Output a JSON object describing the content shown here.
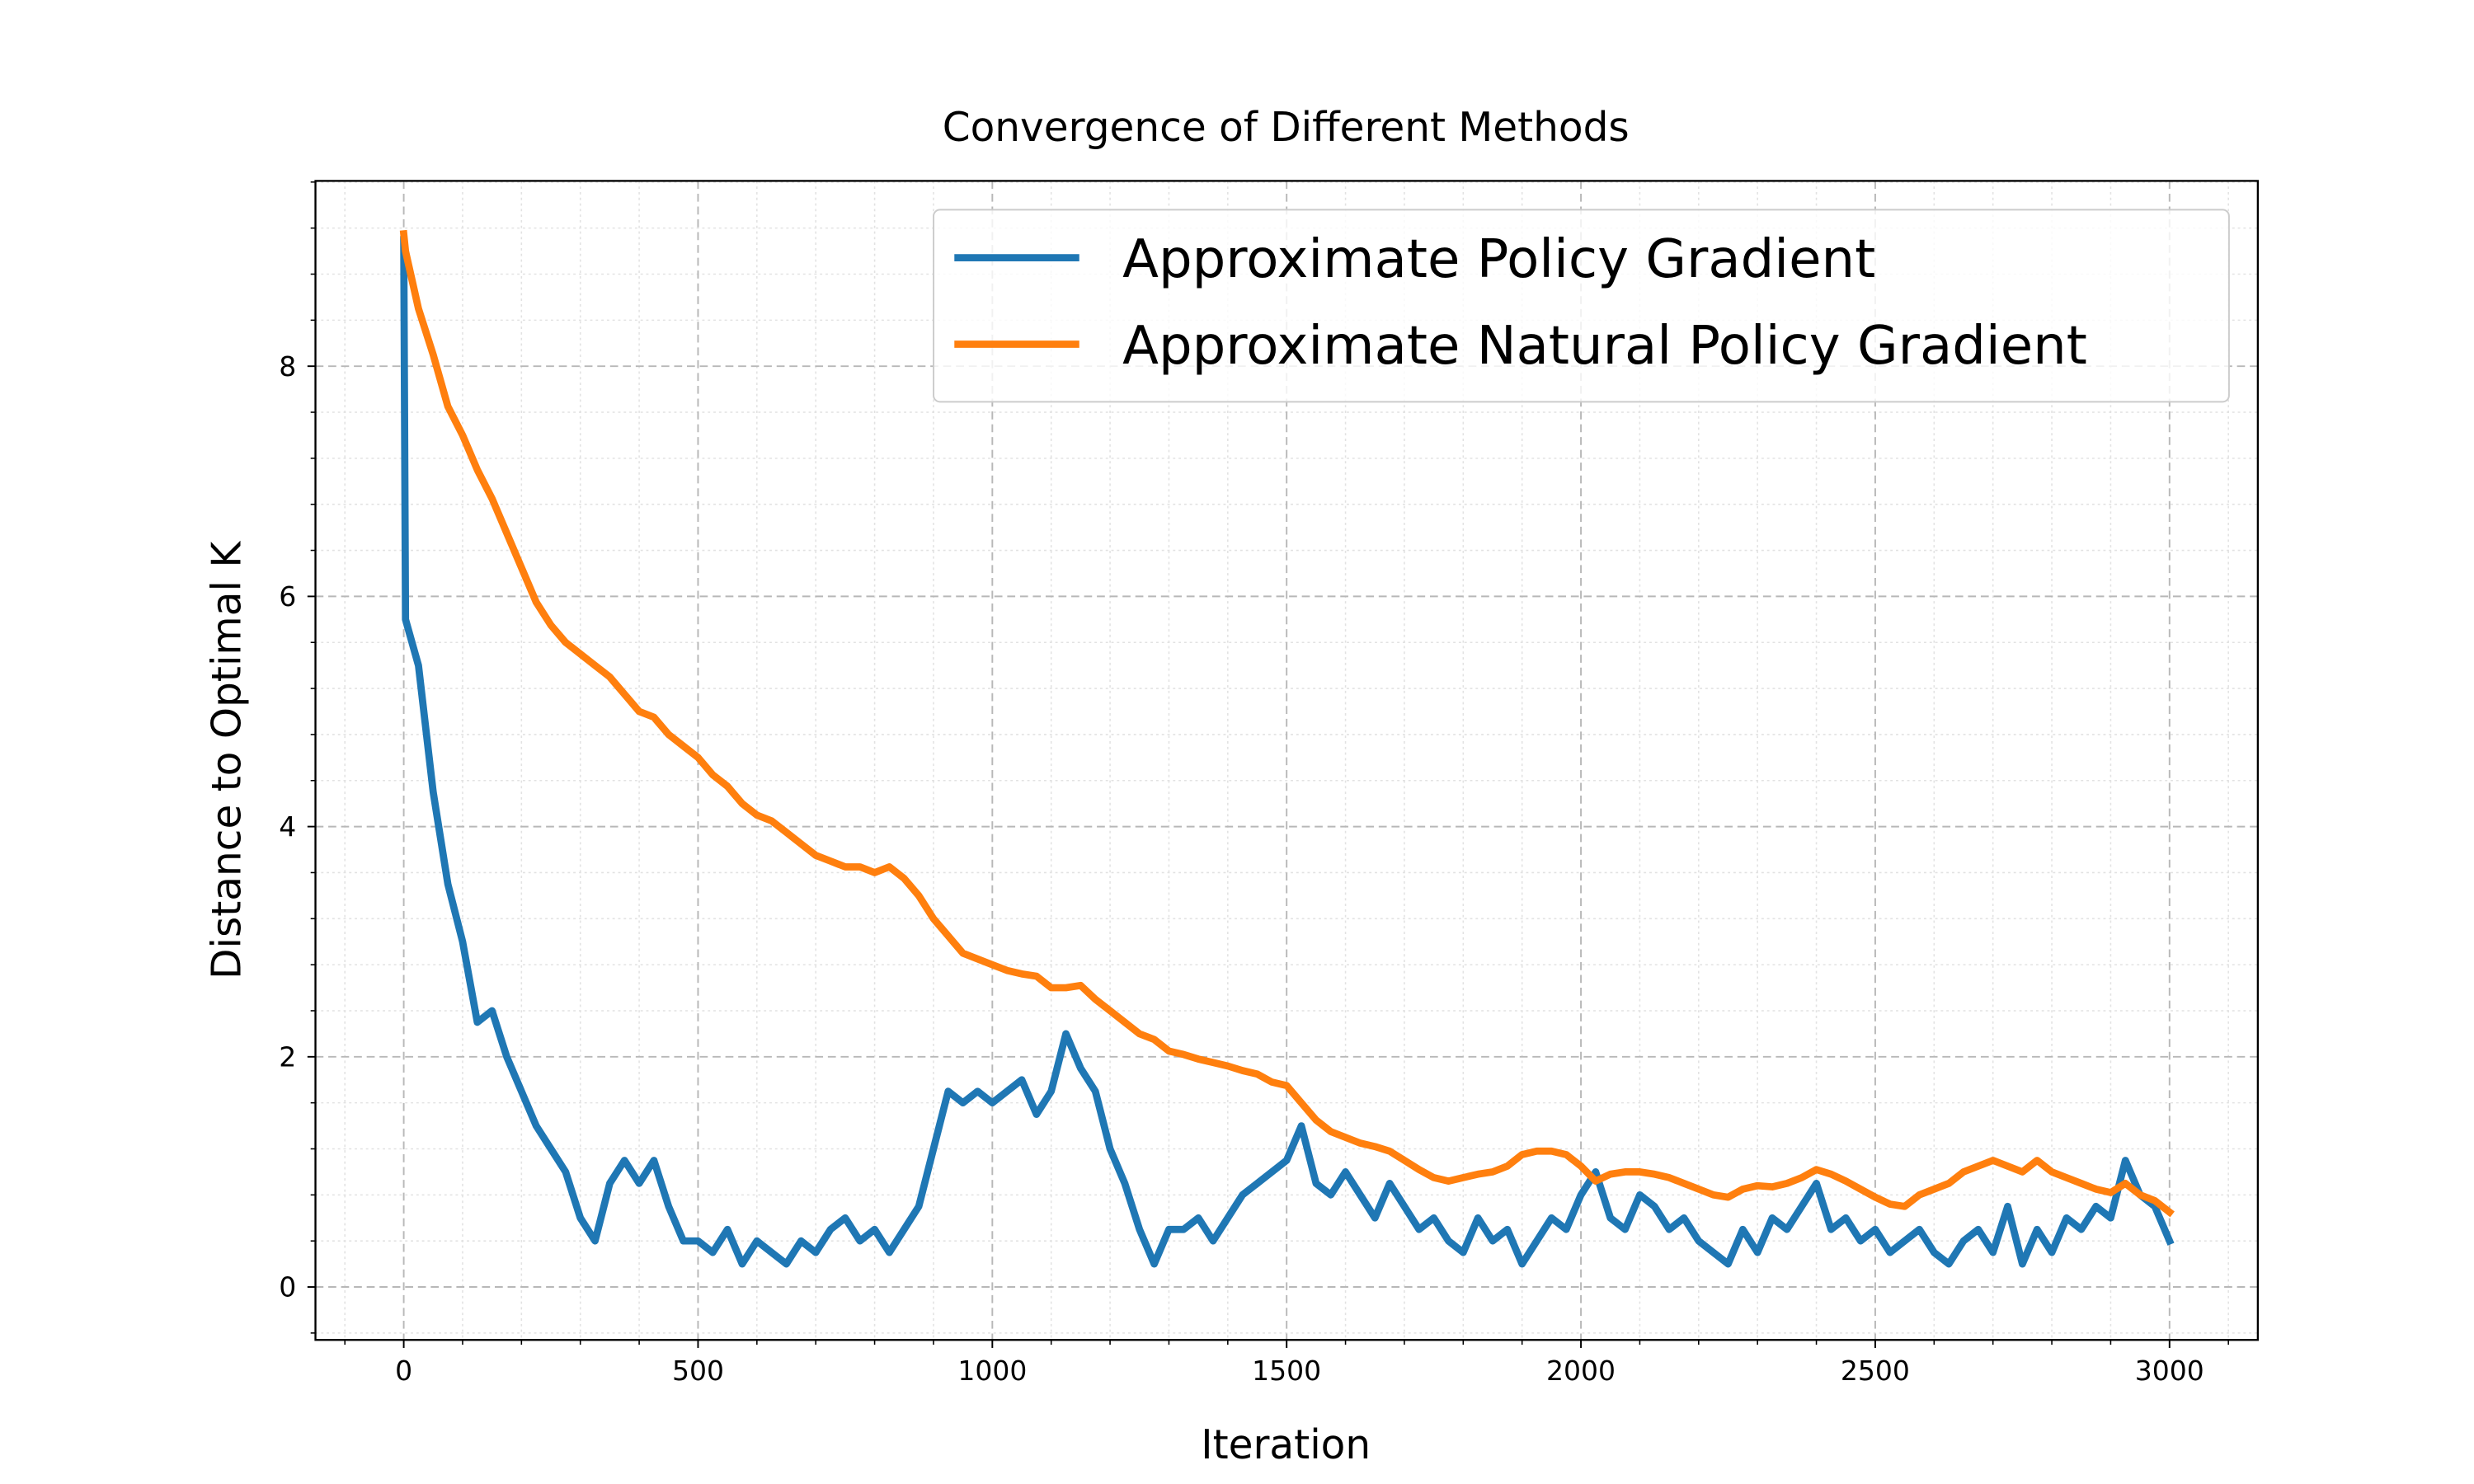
{
  "chart_data": {
    "type": "line",
    "title": "Convergence of Different Methods",
    "x_label": "Iteration",
    "y_label": "Distance to Optimal K",
    "x": [
      0,
      3,
      25,
      50,
      75,
      100,
      125,
      150,
      175,
      200,
      225,
      250,
      275,
      300,
      325,
      350,
      375,
      400,
      425,
      450,
      475,
      500,
      525,
      550,
      575,
      600,
      625,
      650,
      675,
      700,
      725,
      750,
      775,
      800,
      825,
      850,
      875,
      900,
      925,
      950,
      975,
      1000,
      1025,
      1050,
      1075,
      1100,
      1125,
      1150,
      1175,
      1200,
      1225,
      1250,
      1275,
      1300,
      1325,
      1350,
      1375,
      1400,
      1425,
      1450,
      1475,
      1500,
      1525,
      1550,
      1575,
      1600,
      1625,
      1650,
      1675,
      1700,
      1725,
      1750,
      1775,
      1800,
      1825,
      1850,
      1875,
      1900,
      1925,
      1950,
      1975,
      2000,
      2025,
      2050,
      2075,
      2100,
      2125,
      2150,
      2175,
      2200,
      2225,
      2250,
      2275,
      2300,
      2325,
      2350,
      2375,
      2400,
      2425,
      2450,
      2475,
      2500,
      2525,
      2550,
      2575,
      2600,
      2625,
      2650,
      2675,
      2700,
      2725,
      2750,
      2775,
      2800,
      2825,
      2850,
      2875,
      2900,
      2925,
      2950,
      2975,
      3000
    ],
    "series": [
      {
        "name": "Approximate Policy Gradient",
        "color": "#1f77b4",
        "values": [
          9.1,
          5.8,
          5.4,
          4.3,
          3.5,
          3.0,
          2.3,
          2.4,
          2.0,
          1.7,
          1.4,
          1.2,
          1.0,
          0.6,
          0.4,
          0.9,
          1.1,
          0.9,
          1.1,
          0.7,
          0.4,
          0.4,
          0.3,
          0.5,
          0.2,
          0.4,
          0.3,
          0.2,
          0.4,
          0.3,
          0.5,
          0.6,
          0.4,
          0.5,
          0.3,
          0.5,
          0.7,
          1.2,
          1.7,
          1.6,
          1.7,
          1.6,
          1.7,
          1.8,
          1.5,
          1.7,
          2.2,
          1.9,
          1.7,
          1.2,
          0.9,
          0.5,
          0.2,
          0.5,
          0.5,
          0.6,
          0.4,
          0.6,
          0.8,
          0.9,
          1.0,
          1.1,
          1.4,
          0.9,
          0.8,
          1.0,
          0.8,
          0.6,
          0.9,
          0.7,
          0.5,
          0.6,
          0.4,
          0.3,
          0.6,
          0.4,
          0.5,
          0.2,
          0.4,
          0.6,
          0.5,
          0.8,
          1.0,
          0.6,
          0.5,
          0.8,
          0.7,
          0.5,
          0.6,
          0.4,
          0.3,
          0.2,
          0.5,
          0.3,
          0.6,
          0.5,
          0.7,
          0.9,
          0.5,
          0.6,
          0.4,
          0.5,
          0.3,
          0.4,
          0.5,
          0.3,
          0.2,
          0.4,
          0.5,
          0.3,
          0.7,
          0.2,
          0.5,
          0.3,
          0.6,
          0.5,
          0.7,
          0.6,
          1.1,
          0.8,
          0.7,
          0.4
        ]
      },
      {
        "name": "Approximate Natural Policy Gradient",
        "color": "#ff7f0e",
        "values": [
          9.15,
          9.0,
          8.5,
          8.1,
          7.65,
          7.4,
          7.1,
          6.85,
          6.55,
          6.25,
          5.95,
          5.75,
          5.6,
          5.5,
          5.4,
          5.3,
          5.15,
          5.0,
          4.95,
          4.8,
          4.7,
          4.6,
          4.45,
          4.35,
          4.2,
          4.1,
          4.05,
          3.95,
          3.85,
          3.75,
          3.7,
          3.65,
          3.65,
          3.6,
          3.65,
          3.55,
          3.4,
          3.2,
          3.05,
          2.9,
          2.85,
          2.8,
          2.75,
          2.72,
          2.7,
          2.6,
          2.6,
          2.62,
          2.5,
          2.4,
          2.3,
          2.2,
          2.15,
          2.05,
          2.02,
          1.98,
          1.95,
          1.92,
          1.88,
          1.85,
          1.78,
          1.75,
          1.6,
          1.45,
          1.35,
          1.3,
          1.25,
          1.22,
          1.18,
          1.1,
          1.02,
          0.95,
          0.92,
          0.95,
          0.98,
          1.0,
          1.05,
          1.15,
          1.18,
          1.18,
          1.15,
          1.05,
          0.92,
          0.98,
          1.0,
          1.0,
          0.98,
          0.95,
          0.9,
          0.85,
          0.8,
          0.78,
          0.85,
          0.88,
          0.87,
          0.9,
          0.95,
          1.02,
          0.98,
          0.92,
          0.85,
          0.78,
          0.72,
          0.7,
          0.8,
          0.85,
          0.9,
          1.0,
          1.05,
          1.1,
          1.05,
          1.0,
          1.1,
          1.0,
          0.95,
          0.9,
          0.85,
          0.82,
          0.9,
          0.8,
          0.75,
          0.65
        ]
      }
    ],
    "xlim": [
      -150,
      3150
    ],
    "ylim": [
      -0.46,
      9.61
    ],
    "xticks": [
      0,
      500,
      1000,
      1500,
      2000,
      2500,
      3000
    ],
    "yticks": [
      0,
      2,
      4,
      6,
      8
    ],
    "minor_xticks": [
      -100,
      100,
      200,
      300,
      400,
      600,
      700,
      800,
      900,
      1100,
      1200,
      1300,
      1400,
      1600,
      1700,
      1800,
      1900,
      2100,
      2200,
      2300,
      2400,
      2600,
      2700,
      2800,
      2900,
      3100
    ],
    "minor_yticks": [
      -0.4,
      0.4,
      0.8,
      1.2,
      1.6,
      2.4,
      2.8,
      3.2,
      3.6,
      4.4,
      4.8,
      5.2,
      5.6,
      6.4,
      6.8,
      7.2,
      7.6,
      8.4,
      8.8,
      9.2,
      9.6
    ],
    "grid": true,
    "minor_grid": true,
    "legend": "upper right"
  }
}
